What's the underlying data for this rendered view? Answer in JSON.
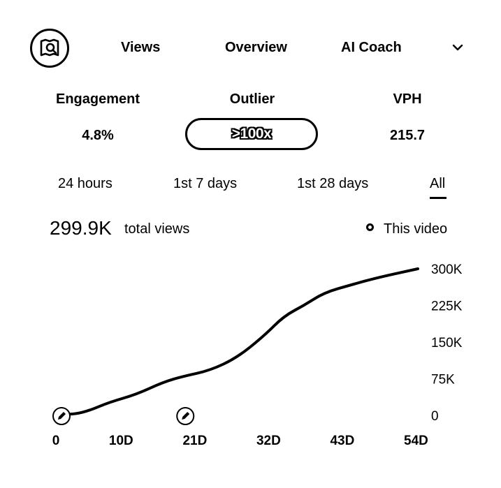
{
  "header": {
    "tabs": [
      {
        "label": "Views"
      },
      {
        "label": "Overview"
      },
      {
        "label": "AI Coach"
      }
    ],
    "logo_icon": "camera-search-icon",
    "menu_icon": "chevron-down-icon"
  },
  "stats": {
    "engagement": {
      "label": "Engagement",
      "value": "4.8%"
    },
    "outlier": {
      "label": "Outlier",
      "value": ">100x"
    },
    "vph": {
      "label": "VPH",
      "value": "215.7"
    }
  },
  "ranges": {
    "items": [
      {
        "label": "24 hours"
      },
      {
        "label": "1st 7 days"
      },
      {
        "label": "1st 28 days"
      },
      {
        "label": "All"
      }
    ],
    "selected": "All"
  },
  "summary": {
    "total": "299.9K",
    "total_label": "total views",
    "legend_label": "This video"
  },
  "chart_data": {
    "type": "line",
    "x_tick_labels": [
      "0",
      "10D",
      "21D",
      "32D",
      "43D",
      "54D"
    ],
    "y_tick_labels": [
      "300K",
      "225K",
      "150K",
      "75K",
      "0"
    ],
    "ylim": [
      0,
      300000
    ],
    "xlim": [
      0,
      54
    ],
    "grid": false,
    "legend_position": "top-right",
    "series": [
      {
        "name": "This video",
        "color": "#000000",
        "points": [
          [
            0,
            0
          ],
          [
            1,
            2000
          ],
          [
            3,
            3000
          ],
          [
            5,
            10000
          ],
          [
            8,
            27000
          ],
          [
            12,
            43000
          ],
          [
            16,
            68000
          ],
          [
            19,
            80000
          ],
          [
            23,
            92000
          ],
          [
            27,
            118000
          ],
          [
            31,
            162000
          ],
          [
            34,
            203000
          ],
          [
            37,
            225000
          ],
          [
            40,
            251000
          ],
          [
            44,
            267000
          ],
          [
            48,
            282000
          ],
          [
            54,
            300000
          ]
        ]
      }
    ],
    "markers": [
      {
        "x": 0,
        "icon": "pencil-icon"
      },
      {
        "x": 19,
        "icon": "pencil-icon"
      }
    ]
  }
}
